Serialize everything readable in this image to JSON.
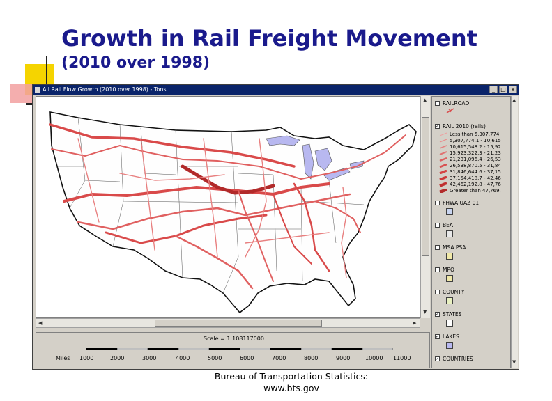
{
  "slide": {
    "title": "Growth in Rail Freight Movement",
    "subtitle": "(2010 over 1998)",
    "source_line1": "Bureau of Transportation Statistics:",
    "source_line2": "www.bts.gov"
  },
  "window": {
    "title": "All Rail Flow Growth (2010 over 1998) - Tons",
    "minimize_label": "_",
    "maximize_label": "□",
    "close_label": "×"
  },
  "scale": {
    "text": "Scale = 1:108117000",
    "units_label": "Miles",
    "ticks": [
      "1000",
      "2000",
      "3000",
      "4000",
      "5000",
      "6000",
      "7000",
      "8000",
      "9000",
      "10000",
      "11000"
    ]
  },
  "legend": {
    "layers": [
      {
        "label": "RAILROAD",
        "checked": false
      },
      {
        "label": "RAIL 2010 (rails)",
        "checked": true
      },
      {
        "label": "FHWA UAZ 01",
        "checked": false
      },
      {
        "label": "BEA",
        "checked": false
      },
      {
        "label": "MSA PSA",
        "checked": false
      },
      {
        "label": "MPO",
        "checked": false
      },
      {
        "label": "COUNTY",
        "checked": false
      },
      {
        "label": "STATES",
        "checked": true
      },
      {
        "label": "LAKES",
        "checked": true
      },
      {
        "label": "COUNTRIES",
        "checked": true
      }
    ],
    "classes": [
      "Less than 5,307,774.",
      "5,307,774.1 - 10,615",
      "10,615,548.2 - 15,92",
      "15,923,322.3 - 21,23",
      "21,231,096.4 - 26,53",
      "26,538,870.5 - 31,84",
      "31,846,644.6 - 37,15",
      "37,154,418.7 - 42,46",
      "42,462,192.8 - 47,76",
      "Greater than 47,769,"
    ],
    "check_mark": "✓"
  },
  "colors": {
    "rail": "#d94a4a",
    "rail_heavy": "#b22a2a",
    "lakes": "#b8b8f0",
    "title": "#1a1a8c",
    "accent_yellow": "#f5d400"
  },
  "icons": {
    "up_arrow": "▲",
    "down_arrow": "▼",
    "left_arrow": "◀",
    "right_arrow": "▶"
  }
}
